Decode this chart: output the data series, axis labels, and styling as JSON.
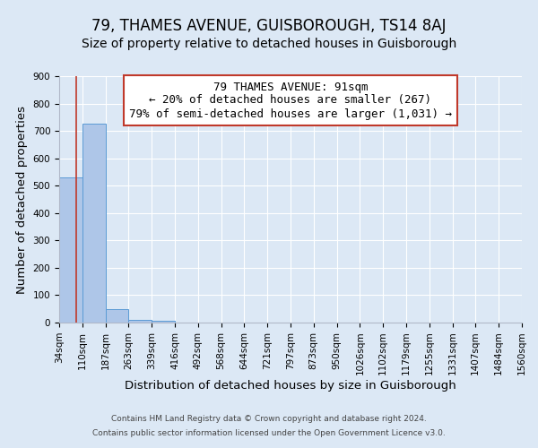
{
  "title": "79, THAMES AVENUE, GUISBOROUGH, TS14 8AJ",
  "subtitle": "Size of property relative to detached houses in Guisborough",
  "xlabel": "Distribution of detached houses by size in Guisborough",
  "ylabel": "Number of detached properties",
  "footer_line1": "Contains HM Land Registry data © Crown copyright and database right 2024.",
  "footer_line2": "Contains public sector information licensed under the Open Government Licence v3.0.",
  "bin_edges": [
    34,
    110,
    187,
    263,
    339,
    416,
    492,
    568,
    644,
    721,
    797,
    873,
    950,
    1026,
    1102,
    1179,
    1255,
    1331,
    1407,
    1484,
    1560
  ],
  "bin_labels": [
    "34sqm",
    "110sqm",
    "187sqm",
    "263sqm",
    "339sqm",
    "416sqm",
    "492sqm",
    "568sqm",
    "644sqm",
    "721sqm",
    "797sqm",
    "873sqm",
    "950sqm",
    "1026sqm",
    "1102sqm",
    "1179sqm",
    "1255sqm",
    "1331sqm",
    "1407sqm",
    "1484sqm",
    "1560sqm"
  ],
  "bar_heights": [
    530,
    727,
    50,
    10,
    5,
    0,
    0,
    0,
    0,
    0,
    0,
    0,
    0,
    0,
    0,
    0,
    0,
    0,
    0,
    0
  ],
  "bar_color": "#aec6e8",
  "bar_edge_color": "#5b9bd5",
  "property_line_x": 91,
  "property_line_color": "#c0392b",
  "annotation_line1": "79 THAMES AVENUE: 91sqm",
  "annotation_line2": "← 20% of detached houses are smaller (267)",
  "annotation_line3": "79% of semi-detached houses are larger (1,031) →",
  "annotation_box_color": "#ffffff",
  "annotation_box_edge_color": "#c0392b",
  "ylim": [
    0,
    900
  ],
  "yticks": [
    0,
    100,
    200,
    300,
    400,
    500,
    600,
    700,
    800,
    900
  ],
  "background_color": "#dce8f5",
  "grid_color": "#ffffff",
  "title_fontsize": 12,
  "subtitle_fontsize": 10,
  "axis_label_fontsize": 9.5,
  "tick_fontsize": 7.5,
  "annotation_fontsize": 9
}
